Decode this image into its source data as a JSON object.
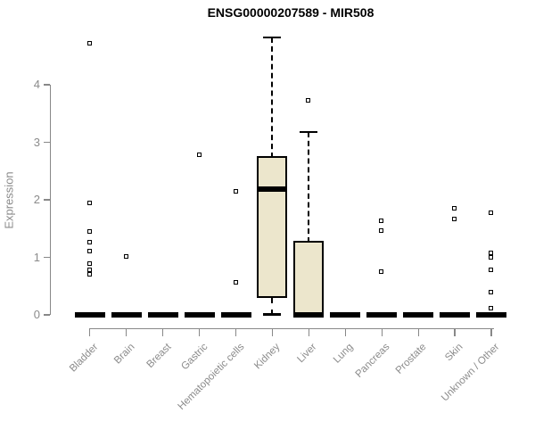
{
  "chart_data": {
    "type": "boxplot",
    "title": "ENSG00000207589 - MIR508",
    "ylabel": "Expression",
    "xlabel": "",
    "ylim": [
      0,
      4.85
    ],
    "yticks": [
      0,
      1,
      2,
      3,
      4
    ],
    "grid": false,
    "legend": "none",
    "categories": [
      "Bladder",
      "Brain",
      "Breast",
      "Gastric",
      "Hematopoietic cells",
      "Kidney",
      "Liver",
      "Lung",
      "Pancreas",
      "Prostate",
      "Skin",
      "Unknown / Other"
    ],
    "series": [
      {
        "category": "Bladder",
        "q1": 0,
        "median": 0,
        "q3": 0,
        "whisker_low": 0,
        "whisker_high": 0,
        "outliers": [
          4.72,
          1.94,
          1.44,
          1.26,
          1.1,
          0.88,
          0.77,
          0.7
        ]
      },
      {
        "category": "Brain",
        "q1": 0,
        "median": 0,
        "q3": 0,
        "whisker_low": 0,
        "whisker_high": 0,
        "outliers": [
          1.01
        ]
      },
      {
        "category": "Breast",
        "q1": 0,
        "median": 0,
        "q3": 0,
        "whisker_low": 0,
        "whisker_high": 0,
        "outliers": []
      },
      {
        "category": "Gastric",
        "q1": 0,
        "median": 0,
        "q3": 0,
        "whisker_low": 0,
        "whisker_high": 0,
        "outliers": [
          2.78
        ]
      },
      {
        "category": "Hematopoietic cells",
        "q1": 0,
        "median": 0,
        "q3": 0,
        "whisker_low": 0,
        "whisker_high": 0,
        "outliers": [
          2.14,
          0.56
        ]
      },
      {
        "category": "Kidney",
        "q1": 0.33,
        "median": 2.19,
        "q3": 2.73,
        "whisker_low": 0,
        "whisker_high": 4.82,
        "outliers": []
      },
      {
        "category": "Liver",
        "q1": 0,
        "median": 0,
        "q3": 1.26,
        "whisker_low": 0,
        "whisker_high": 3.18,
        "outliers": [
          3.72
        ]
      },
      {
        "category": "Lung",
        "q1": 0,
        "median": 0,
        "q3": 0,
        "whisker_low": 0,
        "whisker_high": 0,
        "outliers": []
      },
      {
        "category": "Pancreas",
        "q1": 0,
        "median": 0,
        "q3": 0,
        "whisker_low": 0,
        "whisker_high": 0,
        "outliers": [
          1.63,
          1.46,
          0.74
        ]
      },
      {
        "category": "Prostate",
        "q1": 0,
        "median": 0,
        "q3": 0,
        "whisker_low": 0,
        "whisker_high": 0,
        "outliers": []
      },
      {
        "category": "Skin",
        "q1": 0,
        "median": 0,
        "q3": 0,
        "whisker_low": 0,
        "whisker_high": 0,
        "outliers": [
          1.84,
          1.66
        ]
      },
      {
        "category": "Unknown / Other",
        "q1": 0,
        "median": 0,
        "q3": 0,
        "whisker_low": 0,
        "whisker_high": 0,
        "outliers": [
          1.77,
          1.07,
          0.99,
          0.78,
          0.39,
          0.11
        ]
      }
    ],
    "colors": {
      "box_fill": "#ECE6CC",
      "box_border": "#000000",
      "axis": "#888888",
      "tick_text": "#8b8b8b",
      "title_text": "#000000"
    }
  }
}
